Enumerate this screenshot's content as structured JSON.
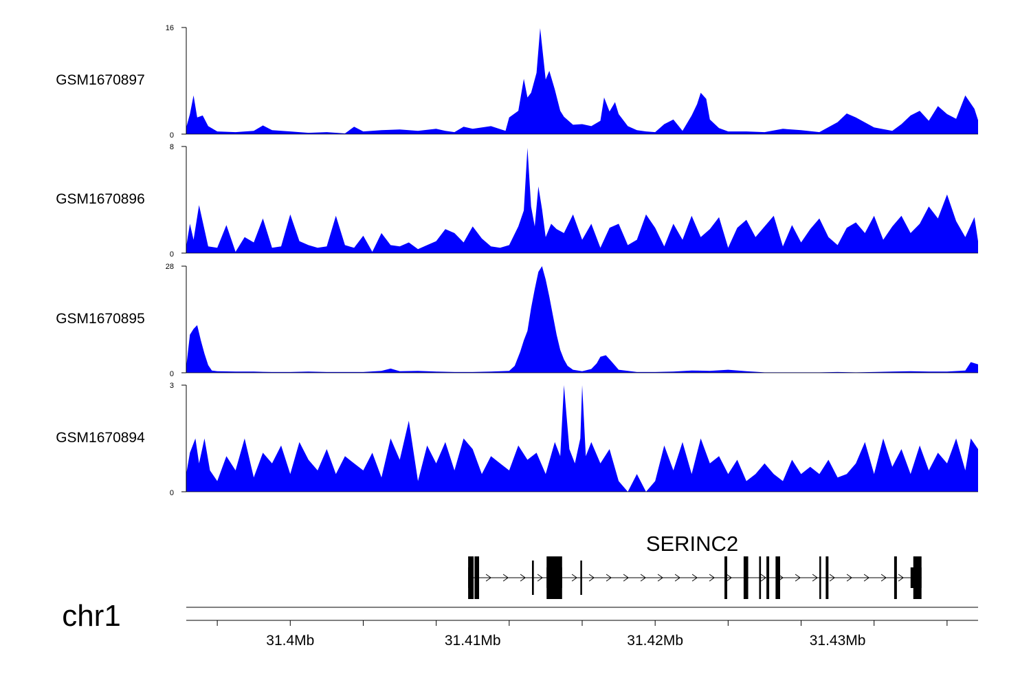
{
  "chart_data": {
    "type": "area",
    "xlim": [
      31.3943,
      31.4377
    ],
    "x_unit": "Mb",
    "fill_color": "#0000ff",
    "x_ticks": [
      31.4,
      31.41,
      31.42,
      31.43
    ],
    "x_tick_labels": [
      "31.4Mb",
      "31.41Mb",
      "31.42Mb",
      "31.43Mb"
    ],
    "tracks": [
      {
        "name": "GSM1670897",
        "ylim": [
          0,
          16
        ],
        "ytick_labels": [
          "0",
          "16"
        ],
        "x": [
          31.3943,
          31.3945,
          31.3947,
          31.3949,
          31.3952,
          31.3955,
          31.396,
          31.397,
          31.398,
          31.3985,
          31.399,
          31.4,
          31.401,
          31.402,
          31.403,
          31.4035,
          31.404,
          31.405,
          31.406,
          31.407,
          31.408,
          31.4085,
          31.409,
          31.4095,
          31.41,
          31.411,
          31.4118,
          31.412,
          31.4125,
          31.4128,
          31.413,
          31.4132,
          31.4135,
          31.4137,
          31.414,
          31.4142,
          31.4145,
          31.4148,
          31.415,
          31.4155,
          31.416,
          31.4165,
          31.417,
          31.4172,
          31.4175,
          31.4178,
          31.418,
          31.4185,
          31.419,
          31.4195,
          31.42,
          31.4205,
          31.421,
          31.4215,
          31.422,
          31.4223,
          31.4225,
          31.4228,
          31.423,
          31.4235,
          31.424,
          31.425,
          31.426,
          31.427,
          31.428,
          31.429,
          31.43,
          31.4305,
          31.431,
          31.432,
          31.433,
          31.4335,
          31.434,
          31.4345,
          31.435,
          31.4355,
          31.436,
          31.4365,
          31.437,
          31.4375,
          31.4377
        ],
        "y": [
          1.0,
          3.0,
          5.8,
          2.5,
          2.8,
          1.2,
          0.4,
          0.3,
          0.5,
          1.3,
          0.6,
          0.4,
          0.2,
          0.3,
          0.1,
          1.1,
          0.4,
          0.6,
          0.7,
          0.5,
          0.8,
          0.5,
          0.3,
          1.1,
          0.8,
          1.2,
          0.5,
          2.5,
          3.5,
          8.3,
          5.5,
          6.2,
          9.2,
          15.9,
          8.2,
          9.5,
          6.7,
          3.5,
          2.6,
          1.4,
          1.5,
          1.2,
          2.0,
          5.5,
          3.4,
          4.8,
          3.0,
          1.2,
          0.6,
          0.4,
          0.3,
          1.5,
          2.2,
          0.5,
          2.8,
          4.5,
          6.2,
          5.3,
          2.2,
          0.9,
          0.4,
          0.4,
          0.3,
          0.8,
          0.6,
          0.3,
          1.8,
          3.1,
          2.5,
          1.0,
          0.5,
          1.5,
          2.8,
          3.5,
          2.0,
          4.2,
          3.0,
          2.3,
          5.8,
          3.8,
          2.1
        ]
      },
      {
        "name": "GSM1670896",
        "ylim": [
          0,
          8
        ],
        "ytick_labels": [
          "0",
          "8"
        ],
        "x": [
          31.3943,
          31.3945,
          31.3947,
          31.395,
          31.3955,
          31.396,
          31.3965,
          31.397,
          31.3975,
          31.398,
          31.3985,
          31.399,
          31.3995,
          31.4,
          31.4005,
          31.401,
          31.4015,
          31.402,
          31.4025,
          31.403,
          31.4035,
          31.404,
          31.4045,
          31.405,
          31.4055,
          31.406,
          31.4065,
          31.407,
          31.4075,
          31.408,
          31.4085,
          31.409,
          31.4095,
          31.41,
          31.4105,
          31.411,
          31.4115,
          31.412,
          31.4125,
          31.4128,
          31.413,
          31.4132,
          31.4134,
          31.4136,
          31.4138,
          31.414,
          31.4143,
          31.4146,
          31.415,
          31.4155,
          31.416,
          31.4165,
          31.417,
          31.4175,
          31.418,
          31.4185,
          31.419,
          31.4195,
          31.42,
          31.4205,
          31.421,
          31.4215,
          31.422,
          31.4225,
          31.423,
          31.4235,
          31.424,
          31.4245,
          31.425,
          31.4255,
          31.426,
          31.4265,
          31.427,
          31.4275,
          31.428,
          31.4285,
          31.429,
          31.4295,
          31.43,
          31.4305,
          31.431,
          31.4315,
          31.432,
          31.4325,
          31.433,
          31.4335,
          31.434,
          31.4345,
          31.435,
          31.4355,
          31.436,
          31.4365,
          31.437,
          31.4375,
          31.4377
        ],
        "y": [
          0.5,
          2.2,
          1.0,
          3.6,
          0.5,
          0.4,
          2.1,
          0.1,
          1.2,
          0.8,
          2.6,
          0.4,
          0.5,
          2.9,
          0.9,
          0.6,
          0.4,
          0.5,
          2.8,
          0.6,
          0.4,
          1.3,
          0.1,
          1.5,
          0.6,
          0.5,
          0.8,
          0.3,
          0.6,
          0.9,
          1.8,
          1.5,
          0.8,
          2.0,
          1.1,
          0.5,
          0.4,
          0.6,
          2.0,
          3.2,
          7.9,
          3.5,
          2.0,
          5.0,
          3.3,
          1.2,
          2.2,
          1.8,
          1.5,
          2.9,
          1.0,
          2.2,
          0.4,
          1.9,
          2.2,
          0.6,
          1.0,
          2.9,
          1.9,
          0.5,
          2.2,
          1.0,
          2.8,
          1.2,
          1.8,
          2.7,
          0.4,
          1.9,
          2.5,
          1.2,
          2.0,
          2.8,
          0.5,
          2.1,
          0.8,
          1.8,
          2.6,
          1.2,
          0.6,
          1.9,
          2.3,
          1.5,
          2.8,
          1.0,
          2.0,
          2.8,
          1.5,
          2.2,
          3.5,
          2.6,
          4.4,
          2.4,
          1.2,
          2.7,
          0.9
        ]
      },
      {
        "name": "GSM1670895",
        "ylim": [
          0,
          28
        ],
        "ytick_labels": [
          "0",
          "28"
        ],
        "x": [
          31.3943,
          31.3945,
          31.3947,
          31.3949,
          31.3951,
          31.3953,
          31.3955,
          31.3957,
          31.396,
          31.397,
          31.398,
          31.399,
          31.4,
          31.401,
          31.402,
          31.403,
          31.404,
          31.405,
          31.4055,
          31.406,
          31.407,
          31.408,
          31.409,
          31.41,
          31.411,
          31.412,
          31.4123,
          31.4126,
          31.4128,
          31.413,
          31.4132,
          31.4134,
          31.4136,
          31.4138,
          31.414,
          31.4142,
          31.4144,
          31.4146,
          31.4148,
          31.415,
          31.4152,
          31.4155,
          31.416,
          31.4165,
          31.4168,
          31.417,
          31.4173,
          31.4176,
          31.418,
          31.419,
          31.42,
          31.421,
          31.422,
          31.423,
          31.424,
          31.425,
          31.426,
          31.427,
          31.428,
          31.429,
          31.43,
          31.431,
          31.432,
          31.433,
          31.434,
          31.435,
          31.436,
          31.437,
          31.4373,
          31.4377
        ],
        "y": [
          1.6,
          10.0,
          11.5,
          12.5,
          8.5,
          5.0,
          2.0,
          0.6,
          0.4,
          0.3,
          0.3,
          0.2,
          0.2,
          0.3,
          0.2,
          0.2,
          0.2,
          0.5,
          1.1,
          0.4,
          0.5,
          0.3,
          0.2,
          0.2,
          0.3,
          0.5,
          1.8,
          5.5,
          8.5,
          11.0,
          17.0,
          22.0,
          26.5,
          28.0,
          24.5,
          20.0,
          15.0,
          10.0,
          6.0,
          3.5,
          1.8,
          0.8,
          0.4,
          1.0,
          2.5,
          4.2,
          4.6,
          3.0,
          0.8,
          0.2,
          0.2,
          0.3,
          0.6,
          0.5,
          0.8,
          0.4,
          0.1,
          0.1,
          0.1,
          0.1,
          0.2,
          0.1,
          0.2,
          0.3,
          0.4,
          0.3,
          0.3,
          0.6,
          2.8,
          2.2
        ]
      },
      {
        "name": "GSM1670894",
        "ylim": [
          0,
          3
        ],
        "ytick_labels": [
          "0",
          "3"
        ],
        "x": [
          31.3943,
          31.3945,
          31.3948,
          31.395,
          31.3953,
          31.3956,
          31.396,
          31.3965,
          31.397,
          31.3975,
          31.398,
          31.3985,
          31.399,
          31.3995,
          31.4,
          31.4005,
          31.401,
          31.4015,
          31.402,
          31.4025,
          31.403,
          31.4035,
          31.404,
          31.4045,
          31.405,
          31.4055,
          31.406,
          31.4065,
          31.407,
          31.4075,
          31.408,
          31.4085,
          31.409,
          31.4095,
          31.41,
          31.4105,
          31.411,
          31.4115,
          31.412,
          31.4125,
          31.413,
          31.4135,
          31.414,
          31.4145,
          31.4148,
          31.415,
          31.4153,
          31.4156,
          31.4159,
          31.416,
          31.4162,
          31.4165,
          31.417,
          31.4175,
          31.418,
          31.4185,
          31.419,
          31.4195,
          31.42,
          31.4205,
          31.421,
          31.4215,
          31.422,
          31.4225,
          31.423,
          31.4235,
          31.424,
          31.4245,
          31.425,
          31.4255,
          31.426,
          31.4265,
          31.427,
          31.4275,
          31.428,
          31.4285,
          31.429,
          31.4295,
          31.43,
          31.4305,
          31.431,
          31.4315,
          31.432,
          31.4325,
          31.433,
          31.4335,
          31.434,
          31.4345,
          31.435,
          31.4355,
          31.436,
          31.4365,
          31.437,
          31.4373,
          31.4377
        ],
        "y": [
          0.5,
          1.1,
          1.5,
          0.8,
          1.5,
          0.6,
          0.3,
          1.0,
          0.6,
          1.5,
          0.4,
          1.1,
          0.8,
          1.3,
          0.5,
          1.4,
          0.9,
          0.6,
          1.2,
          0.5,
          1.0,
          0.8,
          0.6,
          1.1,
          0.4,
          1.5,
          0.9,
          2.0,
          0.3,
          1.3,
          0.8,
          1.4,
          0.6,
          1.5,
          1.2,
          0.5,
          1.0,
          0.8,
          0.6,
          1.3,
          0.9,
          1.1,
          0.5,
          1.4,
          1.0,
          3.0,
          1.2,
          0.8,
          1.5,
          3.0,
          1.0,
          1.4,
          0.8,
          1.2,
          0.3,
          0.0,
          0.5,
          0.0,
          0.3,
          1.3,
          0.6,
          1.4,
          0.5,
          1.5,
          0.8,
          1.0,
          0.5,
          0.9,
          0.3,
          0.5,
          0.8,
          0.5,
          0.3,
          0.9,
          0.5,
          0.7,
          0.5,
          0.9,
          0.4,
          0.5,
          0.8,
          1.4,
          0.5,
          1.5,
          0.7,
          1.2,
          0.5,
          1.3,
          0.6,
          1.1,
          0.8,
          1.5,
          0.6,
          1.5,
          1.2
        ]
      }
    ],
    "gene": {
      "name": "SERINC2",
      "strand": "+",
      "start": 31.40975,
      "end": 31.4346,
      "exons": [
        [
          31.40975,
          31.41005,
          "thick"
        ],
        [
          31.4101,
          31.41035,
          "thick"
        ],
        [
          31.41325,
          31.41335,
          "thin"
        ],
        [
          31.41405,
          31.4149,
          "thick"
        ],
        [
          31.4159,
          31.41595,
          "thin"
        ],
        [
          31.4238,
          31.42395,
          "thick"
        ],
        [
          31.42485,
          31.4251,
          "thick"
        ],
        [
          31.4257,
          31.4258,
          "thick"
        ],
        [
          31.4261,
          31.42625,
          "thick"
        ],
        [
          31.4266,
          31.42685,
          "thick"
        ],
        [
          31.429,
          31.42905,
          "thick"
        ],
        [
          31.42935,
          31.4295,
          "thick"
        ],
        [
          31.4331,
          31.43325,
          "thick"
        ],
        [
          31.43415,
          31.4346,
          "thick"
        ]
      ]
    },
    "chromosome": "chr1"
  }
}
